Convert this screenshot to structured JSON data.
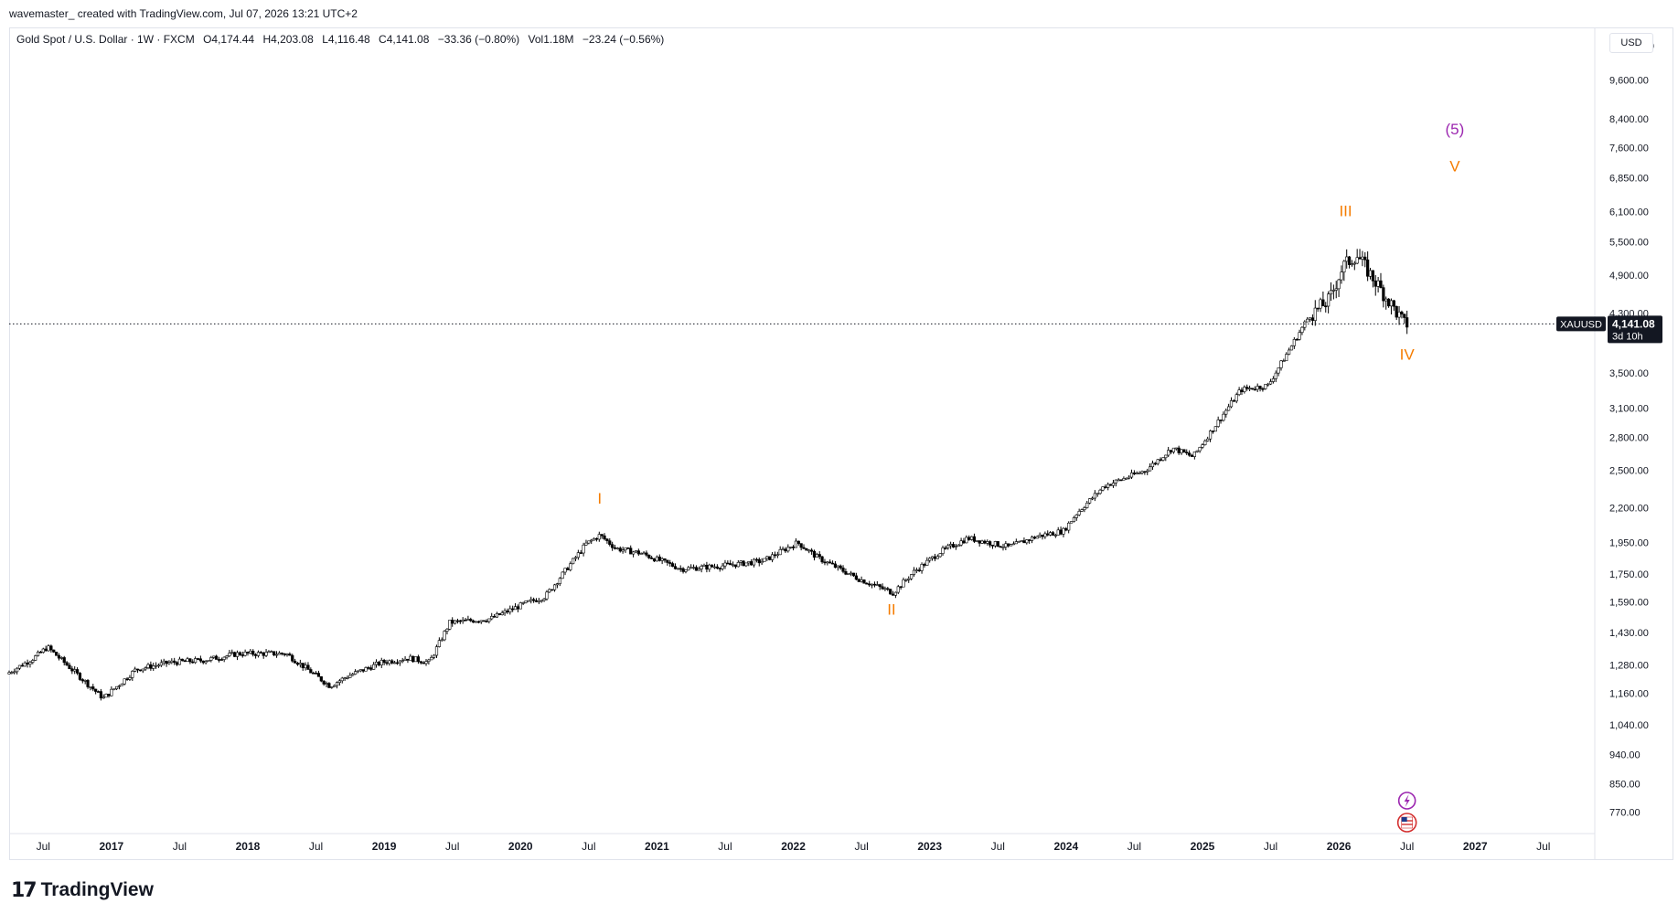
{
  "header": {
    "caption": "wavemaster_ created with TradingView.com, Jul 07, 2026 13:21 UTC+2"
  },
  "legend": {
    "symbol_name": "Gold Spot / U.S. Dollar · 1W · FXCM",
    "open": "O4,174.44",
    "high": "H4,203.08",
    "low": "L4,116.48",
    "close": "C4,141.08",
    "change": "−33.36 (−0.80%)",
    "volume": "Vol1.18M",
    "vol_change": "−23.24 (−0.56%)"
  },
  "price_axis": {
    "currency": "USD",
    "ticks": [
      "10,800.00",
      "9,600.00",
      "8,400.00",
      "7,600.00",
      "6,850.00",
      "6,100.00",
      "5,500.00",
      "4,900.00",
      "4,300.00",
      "3,500.00",
      "3,100.00",
      "2,800.00",
      "2,500.00",
      "2,200.00",
      "1,950.00",
      "1,750.00",
      "1,590.00",
      "1,430.00",
      "1,280.00",
      "1,160.00",
      "1,040.00",
      "940.00",
      "850.00",
      "770.00"
    ]
  },
  "current_price": {
    "symbol": "XAUUSD",
    "price": "4,141.08",
    "countdown": "3d 10h",
    "value": 4141.08
  },
  "time_axis": {
    "ticks": [
      {
        "label": "Jul",
        "year": false
      },
      {
        "label": "2017",
        "year": true
      },
      {
        "label": "Jul",
        "year": false
      },
      {
        "label": "2018",
        "year": true
      },
      {
        "label": "Jul",
        "year": false
      },
      {
        "label": "2019",
        "year": true
      },
      {
        "label": "Jul",
        "year": false
      },
      {
        "label": "2020",
        "year": true
      },
      {
        "label": "Jul",
        "year": false
      },
      {
        "label": "2021",
        "year": true
      },
      {
        "label": "Jul",
        "year": false
      },
      {
        "label": "2022",
        "year": true
      },
      {
        "label": "Jul",
        "year": false
      },
      {
        "label": "2023",
        "year": true
      },
      {
        "label": "Jul",
        "year": false
      },
      {
        "label": "2024",
        "year": true
      },
      {
        "label": "Jul",
        "year": false
      },
      {
        "label": "2025",
        "year": true
      },
      {
        "label": "Jul",
        "year": false
      },
      {
        "label": "2026",
        "year": true
      },
      {
        "label": "Jul",
        "year": false
      },
      {
        "label": "2027",
        "year": true
      },
      {
        "label": "Jul",
        "year": false
      }
    ]
  },
  "wave_labels": [
    {
      "text": "I",
      "color": "#f57c00",
      "time": 2020.58,
      "price": 2230
    },
    {
      "text": "II",
      "color": "#f57c00",
      "time": 2022.72,
      "price": 1520
    },
    {
      "text": "III",
      "color": "#f57c00",
      "time": 2026.05,
      "price": 6000
    },
    {
      "text": "IV",
      "color": "#f57c00",
      "time": 2026.5,
      "price": 3660
    },
    {
      "text": "V",
      "color": "#f57c00",
      "time": 2026.85,
      "price": 7000
    },
    {
      "text": "(5)",
      "color": "#9c27b0",
      "time": 2026.85,
      "price": 7950
    }
  ],
  "brand": {
    "logo": "17",
    "name": "TradingView"
  },
  "icons": {
    "flash": "lightning-icon",
    "flag": "us-flag-icon"
  },
  "colors": {
    "candle": "#000000",
    "wave_orange": "#f57c00",
    "wave_purple": "#9c27b0",
    "price_tag_bg": "#131722"
  },
  "chart_data": {
    "type": "line",
    "title": "Gold Spot / U.S. Dollar · 1W · FXCM",
    "xlabel": "",
    "ylabel": "USD",
    "scale": "log",
    "ylim": [
      720,
      11500
    ],
    "xlim": [
      2016.25,
      2027.85
    ],
    "grid": false,
    "series": [
      {
        "name": "XAUUSD",
        "x": [
          2016.25,
          2016.45,
          2016.55,
          2016.9,
          2016.96,
          2017.2,
          2017.45,
          2017.7,
          2017.95,
          2018.3,
          2018.62,
          2018.75,
          2019.0,
          2019.2,
          2019.35,
          2019.5,
          2019.8,
          2020.05,
          2020.2,
          2020.5,
          2020.6,
          2020.72,
          2020.9,
          2021.2,
          2021.5,
          2021.8,
          2022.05,
          2022.2,
          2022.5,
          2022.75,
          2022.9,
          2023.1,
          2023.3,
          2023.6,
          2023.8,
          2024.0,
          2024.1,
          2024.3,
          2024.6,
          2024.8,
          2024.95,
          2025.3,
          2025.5,
          2025.8,
          2025.95,
          2026.05,
          2026.15,
          2026.3,
          2026.5
        ],
        "values": [
          1240,
          1310,
          1360,
          1170,
          1140,
          1260,
          1290,
          1300,
          1330,
          1330,
          1190,
          1230,
          1290,
          1310,
          1290,
          1480,
          1500,
          1580,
          1620,
          1940,
          2000,
          1910,
          1880,
          1780,
          1800,
          1830,
          1950,
          1850,
          1720,
          1640,
          1760,
          1890,
          1980,
          1920,
          1990,
          2030,
          2160,
          2370,
          2500,
          2700,
          2620,
          3300,
          3350,
          4250,
          4500,
          5050,
          5250,
          4750,
          4141
        ]
      }
    ],
    "annotations": [
      "I",
      "II",
      "III",
      "IV",
      "V",
      "(5)"
    ]
  }
}
